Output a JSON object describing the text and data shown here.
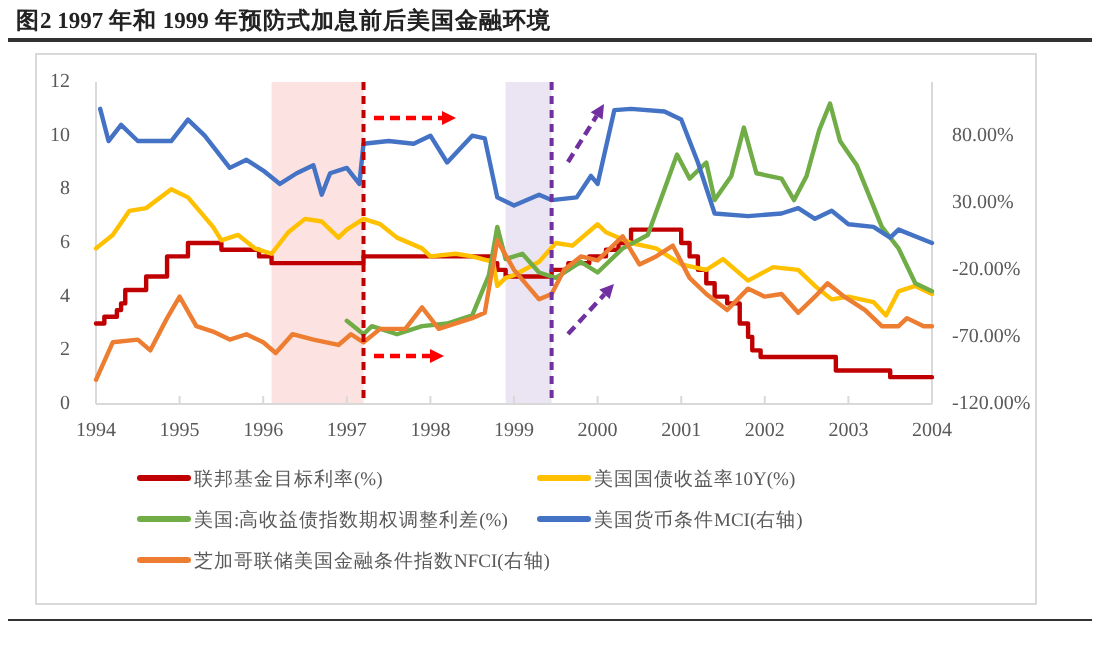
{
  "chart_data": {
    "type": "line",
    "title": "图2  1997 年和 1999 年预防式加息前后美国金融环境",
    "xlim": [
      1994,
      2004
    ],
    "xticks": [
      1994,
      1995,
      1996,
      1997,
      1998,
      1999,
      2000,
      2001,
      2002,
      2003,
      2004
    ],
    "ylim": [
      0,
      12
    ],
    "yticks": [
      0,
      2,
      4,
      6,
      8,
      10,
      12
    ],
    "y2lim": [
      -120,
      120
    ],
    "y2ticks": [
      {
        "value": -120,
        "label": "-120.00%"
      },
      {
        "value": -70,
        "label": "-70.00%"
      },
      {
        "value": -20,
        "label": "-20.00%"
      },
      {
        "value": 30,
        "label": "30.00%"
      },
      {
        "value": 80,
        "label": "80.00%"
      }
    ],
    "legend": "bottom",
    "bands": [
      {
        "axis": "x",
        "from": 1996.1,
        "to": 1997.2,
        "color": "#fde2e2"
      },
      {
        "axis": "x",
        "from": 1998.9,
        "to": 1999.45,
        "color": "#ebe5f3"
      }
    ],
    "ref_lines": [
      {
        "axis": "x",
        "value": 1997.2,
        "color": "#c00000",
        "line_style": "dashed"
      },
      {
        "axis": "x",
        "value": 1999.45,
        "color": "#7030a0",
        "line_style": "dashed"
      }
    ],
    "series": [
      {
        "name": "联邦基金目标利率(%)",
        "type": "step",
        "color": "#c00000",
        "x": [
          1994.0,
          1994.1,
          1994.25,
          1994.3,
          1994.35,
          1994.6,
          1994.85,
          1995.1,
          1995.5,
          1995.95,
          1996.1,
          1997.2,
          1998.75,
          1998.8,
          1998.9,
          1999.45,
          1999.65,
          1999.9,
          2000.1,
          2000.25,
          2000.4,
          2001.0,
          2001.1,
          2001.2,
          2001.3,
          2001.4,
          2001.55,
          2001.7,
          2001.8,
          2001.85,
          2001.95,
          2002.85,
          2003.5,
          2004.0
        ],
        "values": [
          3.0,
          3.25,
          3.5,
          3.75,
          4.25,
          4.75,
          5.5,
          6.0,
          5.75,
          5.5,
          5.25,
          5.5,
          5.25,
          5.0,
          4.75,
          5.0,
          5.25,
          5.5,
          5.75,
          6.0,
          6.5,
          6.0,
          5.5,
          5.0,
          4.5,
          4.0,
          3.75,
          3.0,
          2.5,
          2.0,
          1.75,
          1.25,
          1.0,
          1.0
        ]
      },
      {
        "name": "美国国债收益率10Y(%)",
        "color": "#ffc000",
        "x": [
          1994.0,
          1994.2,
          1994.4,
          1994.6,
          1994.9,
          1995.1,
          1995.4,
          1995.5,
          1995.7,
          1995.9,
          1996.1,
          1996.3,
          1996.5,
          1996.7,
          1996.9,
          1997.0,
          1997.2,
          1997.4,
          1997.6,
          1997.9,
          1998.0,
          1998.3,
          1998.5,
          1998.75,
          1998.8,
          1998.9,
          1999.0,
          1999.3,
          1999.5,
          1999.7,
          2000.0,
          2000.1,
          2000.4,
          2000.7,
          2001.0,
          2001.3,
          2001.5,
          2001.8,
          2002.1,
          2002.4,
          2002.6,
          2002.8,
          2003.0,
          2003.3,
          2003.45,
          2003.6,
          2003.8,
          2004.0
        ],
        "values": [
          5.8,
          6.3,
          7.2,
          7.3,
          8.0,
          7.7,
          6.6,
          6.1,
          6.3,
          5.8,
          5.6,
          6.4,
          6.9,
          6.8,
          6.2,
          6.5,
          6.9,
          6.7,
          6.2,
          5.8,
          5.5,
          5.6,
          5.5,
          5.3,
          4.4,
          4.7,
          4.8,
          5.3,
          6.0,
          5.9,
          6.7,
          6.4,
          6.0,
          5.8,
          5.2,
          5.0,
          5.4,
          4.6,
          5.1,
          5.0,
          4.4,
          3.9,
          4.0,
          3.8,
          3.3,
          4.2,
          4.4,
          4.1
        ]
      },
      {
        "name": "美国:高收益债指数期权调整利差(%)",
        "color": "#70ad47",
        "x": [
          1997.0,
          1997.2,
          1997.3,
          1997.6,
          1997.9,
          1998.2,
          1998.5,
          1998.7,
          1998.8,
          1998.9,
          1999.1,
          1999.3,
          1999.5,
          1999.8,
          2000.0,
          2000.3,
          2000.6,
          2000.8,
          2000.95,
          2001.1,
          2001.3,
          2001.4,
          2001.6,
          2001.75,
          2001.9,
          2002.2,
          2002.35,
          2002.5,
          2002.65,
          2002.78,
          2002.9,
          2003.1,
          2003.4,
          2003.6,
          2003.8,
          2004.0
        ],
        "values": [
          3.1,
          2.6,
          2.9,
          2.6,
          2.9,
          3.0,
          3.3,
          4.8,
          6.6,
          5.4,
          5.6,
          4.9,
          4.7,
          5.3,
          4.9,
          5.8,
          6.3,
          8.0,
          9.3,
          8.4,
          9.0,
          7.6,
          8.5,
          10.3,
          8.6,
          8.4,
          7.6,
          8.5,
          10.2,
          11.2,
          9.8,
          8.9,
          6.6,
          5.8,
          4.5,
          4.2
        ]
      },
      {
        "name": "美国货币条件MCI(右轴)",
        "color": "#4472c4",
        "axis": "y2",
        "x": [
          1994.05,
          1994.15,
          1994.3,
          1994.5,
          1994.9,
          1995.1,
          1995.3,
          1995.6,
          1995.8,
          1996.0,
          1996.2,
          1996.4,
          1996.6,
          1996.7,
          1996.8,
          1997.0,
          1997.15,
          1997.2,
          1997.5,
          1997.8,
          1998.0,
          1998.2,
          1998.5,
          1998.65,
          1998.8,
          1999.0,
          1999.3,
          1999.45,
          1999.75,
          1999.92,
          2000.0,
          2000.2,
          2000.4,
          2000.8,
          2001.0,
          2001.2,
          2001.4,
          2001.8,
          2002.2,
          2002.4,
          2002.6,
          2002.8,
          2003.0,
          2003.3,
          2003.5,
          2003.6,
          2004.0
        ],
        "values": [
          100,
          76,
          88,
          76,
          76,
          92,
          80,
          56,
          62,
          54,
          44,
          52,
          58,
          36,
          52,
          56,
          44,
          74,
          76,
          74,
          80,
          60,
          80,
          78,
          34,
          28,
          36,
          32,
          34,
          50,
          44,
          99,
          100,
          98,
          92,
          60,
          22,
          20,
          22,
          26,
          18,
          24,
          14,
          12,
          4,
          10,
          0
        ]
      },
      {
        "name": "芝加哥联储美国金融条件指数NFCI(右轴)",
        "color": "#ed7d31",
        "axis": "y2",
        "x": [
          1994.0,
          1994.2,
          1994.5,
          1994.65,
          1994.85,
          1995.0,
          1995.2,
          1995.4,
          1995.6,
          1995.8,
          1996.0,
          1996.15,
          1996.35,
          1996.6,
          1996.9,
          1997.05,
          1997.2,
          1997.4,
          1997.7,
          1997.9,
          1998.1,
          1998.5,
          1998.65,
          1998.8,
          1999.0,
          1999.3,
          1999.45,
          1999.6,
          1999.8,
          2000.0,
          2000.3,
          2000.5,
          2000.7,
          2000.9,
          2001.1,
          2001.3,
          2001.55,
          2001.8,
          2002.0,
          2002.2,
          2002.4,
          2002.6,
          2002.75,
          2002.95,
          2003.2,
          2003.4,
          2003.6,
          2003.7,
          2003.9,
          2004.0
        ],
        "values": [
          -102,
          -74,
          -72,
          -80,
          -56,
          -40,
          -62,
          -66,
          -72,
          -68,
          -74,
          -82,
          -68,
          -72,
          -76,
          -68,
          -74,
          -64,
          -64,
          -48,
          -64,
          -56,
          -52,
          2,
          -20,
          -42,
          -38,
          -20,
          -10,
          -13,
          5,
          -16,
          -10,
          -2,
          -26,
          -38,
          -50,
          -34,
          -40,
          -38,
          -52,
          -40,
          -30,
          -40,
          -50,
          -62,
          -62,
          -56,
          -62,
          -62
        ]
      }
    ]
  }
}
